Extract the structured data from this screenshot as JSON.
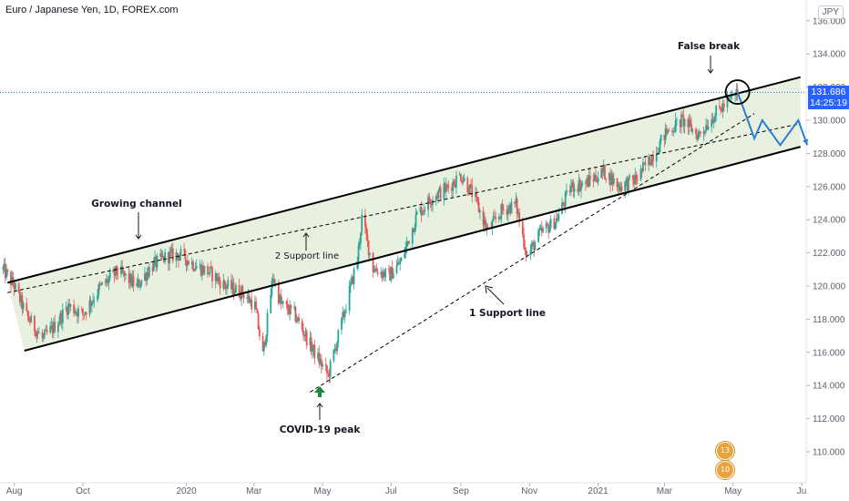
{
  "header": {
    "title": "Euro / Japanese Yen, 1D, FOREX.com",
    "currency_badge": "JPY"
  },
  "price_tag": {
    "price": "131.686",
    "countdown": "14:25:19"
  },
  "event_badges": [
    "13",
    "10"
  ],
  "colors": {
    "up": "#26a69a",
    "down": "#ef5350",
    "channel_fill": "#d8e6cc",
    "projection": "#2a7fd4",
    "price_line": "#2962ff",
    "covid_arrow": "#1a8a3a",
    "axis_text": "#5d606b"
  },
  "annotations": {
    "growing_channel": "Growing channel",
    "support2": "2 Support line",
    "support1": "1 Support line",
    "covid_peak": "COVID-19 peak",
    "false_break": "False break"
  },
  "chart_data": {
    "type": "candlestick",
    "title": "Euro / Japanese Yen, 1D, FOREX.com",
    "x_ticks": [
      "Aug",
      "Oct",
      "2020",
      "Mar",
      "May",
      "Jul",
      "Sep",
      "Nov",
      "2021",
      "Mar",
      "May",
      "Ju"
    ],
    "y_ticks": [
      "110.000",
      "112.000",
      "114.000",
      "116.000",
      "118.000",
      "120.000",
      "122.000",
      "124.000",
      "126.000",
      "128.000",
      "130.000",
      "132.000",
      "134.000",
      "136.000"
    ],
    "ylim": [
      108.5,
      137.0
    ],
    "current_price": 131.686,
    "price_path": [
      [
        "2019-07-22",
        121.0
      ],
      [
        "2019-08-01",
        120.0
      ],
      [
        "2019-08-12",
        118.2
      ],
      [
        "2019-08-26",
        116.8
      ],
      [
        "2019-09-05",
        117.5
      ],
      [
        "2019-09-18",
        118.8
      ],
      [
        "2019-10-01",
        118.3
      ],
      [
        "2019-10-15",
        119.8
      ],
      [
        "2019-11-01",
        120.9
      ],
      [
        "2019-11-18",
        120.0
      ],
      [
        "2019-12-01",
        121.2
      ],
      [
        "2019-12-15",
        121.8
      ],
      [
        "2019-12-26",
        121.9
      ],
      [
        "2020-01-10",
        121.2
      ],
      [
        "2020-01-22",
        120.8
      ],
      [
        "2020-02-05",
        120.0
      ],
      [
        "2020-02-20",
        119.6
      ],
      [
        "2020-03-02",
        118.8
      ],
      [
        "2020-03-09",
        115.8
      ],
      [
        "2020-03-18",
        120.6
      ],
      [
        "2020-03-25",
        118.9
      ],
      [
        "2020-04-06",
        118.3
      ],
      [
        "2020-04-22",
        116.2
      ],
      [
        "2020-05-06",
        114.6
      ],
      [
        "2020-05-20",
        118.3
      ],
      [
        "2020-06-01",
        121.6
      ],
      [
        "2020-06-05",
        124.1
      ],
      [
        "2020-06-15",
        121.1
      ],
      [
        "2020-06-29",
        120.6
      ],
      [
        "2020-07-10",
        121.5
      ],
      [
        "2020-07-24",
        124.3
      ],
      [
        "2020-08-07",
        125.4
      ],
      [
        "2020-08-20",
        125.9
      ],
      [
        "2020-09-01",
        126.7
      ],
      [
        "2020-09-12",
        125.5
      ],
      [
        "2020-09-25",
        123.3
      ],
      [
        "2020-10-08",
        124.6
      ],
      [
        "2020-10-20",
        124.9
      ],
      [
        "2020-10-30",
        121.8
      ],
      [
        "2020-11-10",
        123.1
      ],
      [
        "2020-11-25",
        124.0
      ],
      [
        "2020-12-08",
        126.0
      ],
      [
        "2020-12-21",
        126.2
      ],
      [
        "2021-01-06",
        126.9
      ],
      [
        "2021-01-20",
        126.0
      ],
      [
        "2021-02-03",
        126.4
      ],
      [
        "2021-02-17",
        127.7
      ],
      [
        "2021-03-03",
        129.3
      ],
      [
        "2021-03-17",
        130.0
      ],
      [
        "2021-03-31",
        129.1
      ],
      [
        "2021-04-14",
        130.3
      ],
      [
        "2021-04-28",
        131.2
      ],
      [
        "2021-05-05",
        131.7
      ]
    ],
    "lines": [
      {
        "name": "Growing channel upper",
        "from": [
          "2019-07-26",
          120.2
        ],
        "to": [
          "2021-06-30",
          132.6
        ],
        "style": "solid"
      },
      {
        "name": "Growing channel lower",
        "from": [
          "2019-08-10",
          116.1
        ],
        "to": [
          "2021-06-30",
          128.4
        ],
        "style": "solid"
      },
      {
        "name": "2 Support line",
        "from": [
          "2019-07-26",
          119.6
        ],
        "to": [
          "2021-06-30",
          129.8
        ],
        "style": "dashed"
      },
      {
        "name": "1 Support line",
        "from": [
          "2020-04-20",
          113.6
        ],
        "to": [
          "2021-05-20",
          130.4
        ],
        "style": "dashed"
      }
    ],
    "projection": [
      [
        "2021-05-05",
        131.7
      ],
      [
        "2021-05-20",
        128.9
      ],
      [
        "2021-05-27",
        130.0
      ],
      [
        "2021-06-12",
        128.5
      ],
      [
        "2021-06-28",
        130.0
      ],
      [
        "2021-07-06",
        128.5
      ]
    ]
  }
}
